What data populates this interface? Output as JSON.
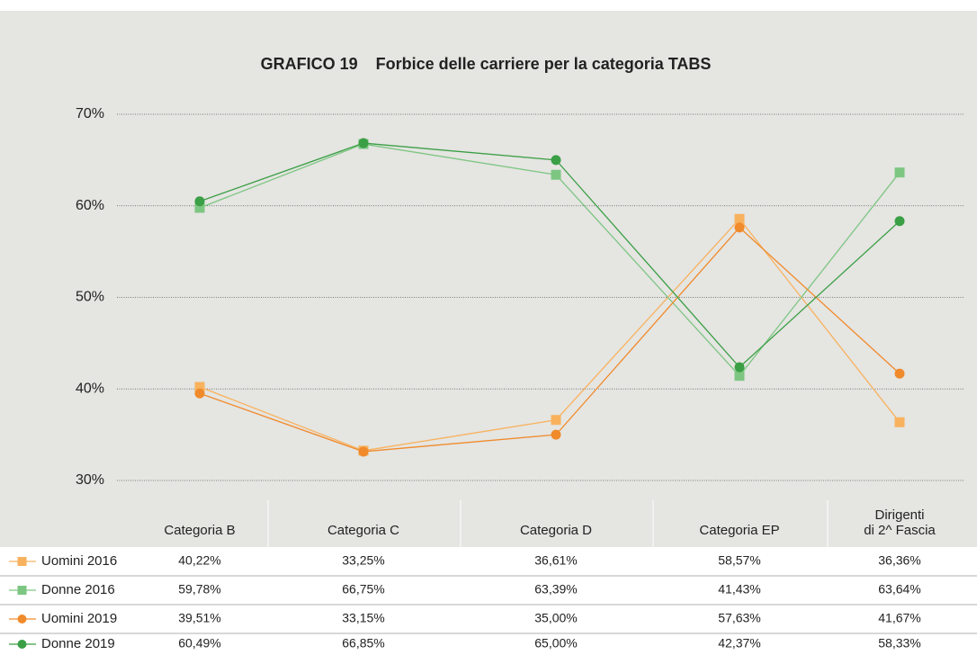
{
  "chart_data": {
    "type": "line",
    "title": "GRAFICO 19    Forbice delle carriere per la categoria TABS",
    "categories": [
      "Categoria B",
      "Categoria C",
      "Categoria D",
      "Categoria EP",
      "Dirigenti\ndi 2^ Fascia"
    ],
    "ylim": [
      30,
      70
    ],
    "yticks": [
      {
        "value": 30,
        "label": "30%"
      },
      {
        "value": 40,
        "label": "40%"
      },
      {
        "value": 50,
        "label": "50%"
      },
      {
        "value": 60,
        "label": "60%"
      },
      {
        "value": 70,
        "label": "70%"
      }
    ],
    "grid": true,
    "series": [
      {
        "name": "Uomini 2016",
        "color": "#f8b25e",
        "marker": "square",
        "values": [
          40.22,
          33.25,
          36.61,
          58.57,
          36.36
        ],
        "value_labels": [
          "40,22%",
          "33,25%",
          "36,61%",
          "58,57%",
          "36,36%"
        ]
      },
      {
        "name": "Donne 2016",
        "color": "#7dc682",
        "marker": "square",
        "values": [
          59.78,
          66.75,
          63.39,
          41.43,
          63.64
        ],
        "value_labels": [
          "59,78%",
          "66,75%",
          "63,39%",
          "41,43%",
          "63,64%"
        ]
      },
      {
        "name": "Uomini 2019",
        "color": "#f08a2a",
        "marker": "circle",
        "values": [
          39.51,
          33.15,
          35.0,
          57.63,
          41.67
        ],
        "value_labels": [
          "39,51%",
          "33,15%",
          "35,00%",
          "57,63%",
          "41,67%"
        ]
      },
      {
        "name": "Donne 2019",
        "color": "#3b9f45",
        "marker": "circle",
        "values": [
          60.49,
          66.85,
          65.0,
          42.37,
          58.33
        ],
        "value_labels": [
          "60,49%",
          "66,85%",
          "65,00%",
          "42,37%",
          "58,33%"
        ]
      }
    ]
  }
}
